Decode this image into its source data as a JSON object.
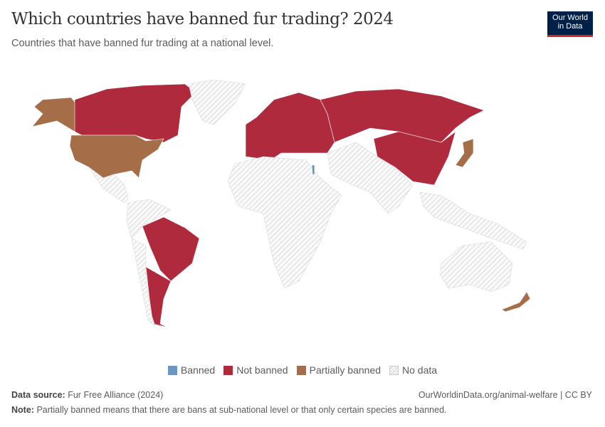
{
  "header": {
    "title": "Which countries have banned fur trading? 2024",
    "subtitle": "Countries that have banned fur trading at a national level.",
    "logo_line1": "Our World",
    "logo_line2": "in Data"
  },
  "colors": {
    "banned": "#6D95C4",
    "not_banned": "#B02A3D",
    "partially_banned": "#A56E49",
    "no_data": "#e4e4e4",
    "logo_bg": "#002147",
    "logo_accent": "#ce261e"
  },
  "legend": [
    {
      "label": "Banned",
      "key": "banned"
    },
    {
      "label": "Not banned",
      "key": "not_banned"
    },
    {
      "label": "Partially banned",
      "key": "partially_banned"
    },
    {
      "label": "No data",
      "key": "no_data"
    }
  ],
  "regions": [
    {
      "name": "Alaska (United States)",
      "status": "partially_banned"
    },
    {
      "name": "Canada",
      "status": "not_banned"
    },
    {
      "name": "Greenland",
      "status": "no_data"
    },
    {
      "name": "United States",
      "status": "partially_banned"
    },
    {
      "name": "Mexico and Central America",
      "status": "no_data"
    },
    {
      "name": "Northern South America",
      "status": "no_data"
    },
    {
      "name": "Brazil",
      "status": "not_banned"
    },
    {
      "name": "Argentina",
      "status": "not_banned"
    },
    {
      "name": "Chile",
      "status": "no_data"
    },
    {
      "name": "Europe",
      "status": "not_banned"
    },
    {
      "name": "Russia",
      "status": "not_banned"
    },
    {
      "name": "China",
      "status": "not_banned"
    },
    {
      "name": "Japan",
      "status": "partially_banned"
    },
    {
      "name": "Africa",
      "status": "no_data"
    },
    {
      "name": "Middle East and South Asia",
      "status": "no_data"
    },
    {
      "name": "Southeast Asia",
      "status": "no_data"
    },
    {
      "name": "Australia",
      "status": "no_data"
    },
    {
      "name": "New Zealand",
      "status": "partially_banned"
    },
    {
      "name": "Israel",
      "status": "banned"
    }
  ],
  "footer": {
    "source_label": "Data source:",
    "source": "Fur Free Alliance (2024)",
    "url": "OurWorldinData.org/animal-welfare | CC BY",
    "note_label": "Note:",
    "note": "Partially banned means that there are bans at sub-national level or that only certain species are banned."
  }
}
